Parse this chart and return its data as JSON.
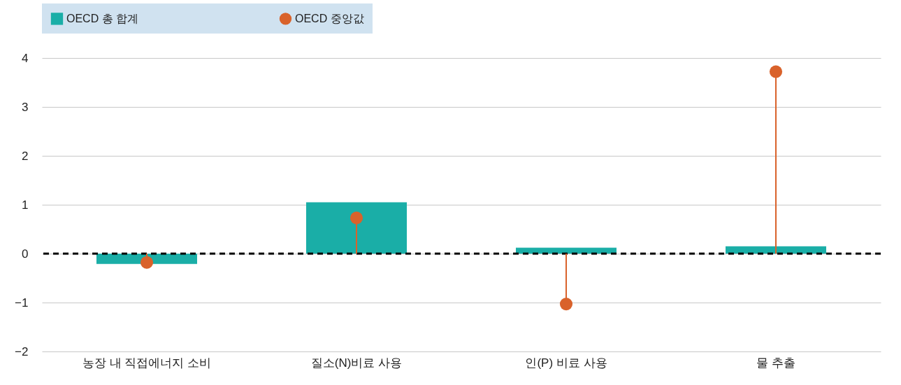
{
  "chart_data": {
    "type": "bar",
    "categories": [
      "농장 내 직접에너지 소비",
      "질소(N)비료 사용",
      "인(P) 비료 사용",
      "물 추출"
    ],
    "series": [
      {
        "name": "OECD 총 합계",
        "type": "bar",
        "color": "#1aaea7",
        "values": [
          -0.21,
          1.05,
          0.12,
          0.15
        ]
      },
      {
        "name": "OECD 중앙값",
        "type": "lollipop",
        "color": "#d9622b",
        "values": [
          -0.18,
          0.73,
          -1.03,
          3.72
        ]
      }
    ],
    "ylim": [
      -2,
      4
    ],
    "yticks": [
      {
        "value": -2,
        "label": "−2"
      },
      {
        "value": -1,
        "label": "−1"
      },
      0,
      1,
      2,
      3,
      4
    ],
    "ref_lines": [
      {
        "axis": "y",
        "value": 0,
        "color": "#000000",
        "line_style": "dashed"
      }
    ],
    "grid": "y",
    "legend": "top",
    "marker": "circle"
  }
}
